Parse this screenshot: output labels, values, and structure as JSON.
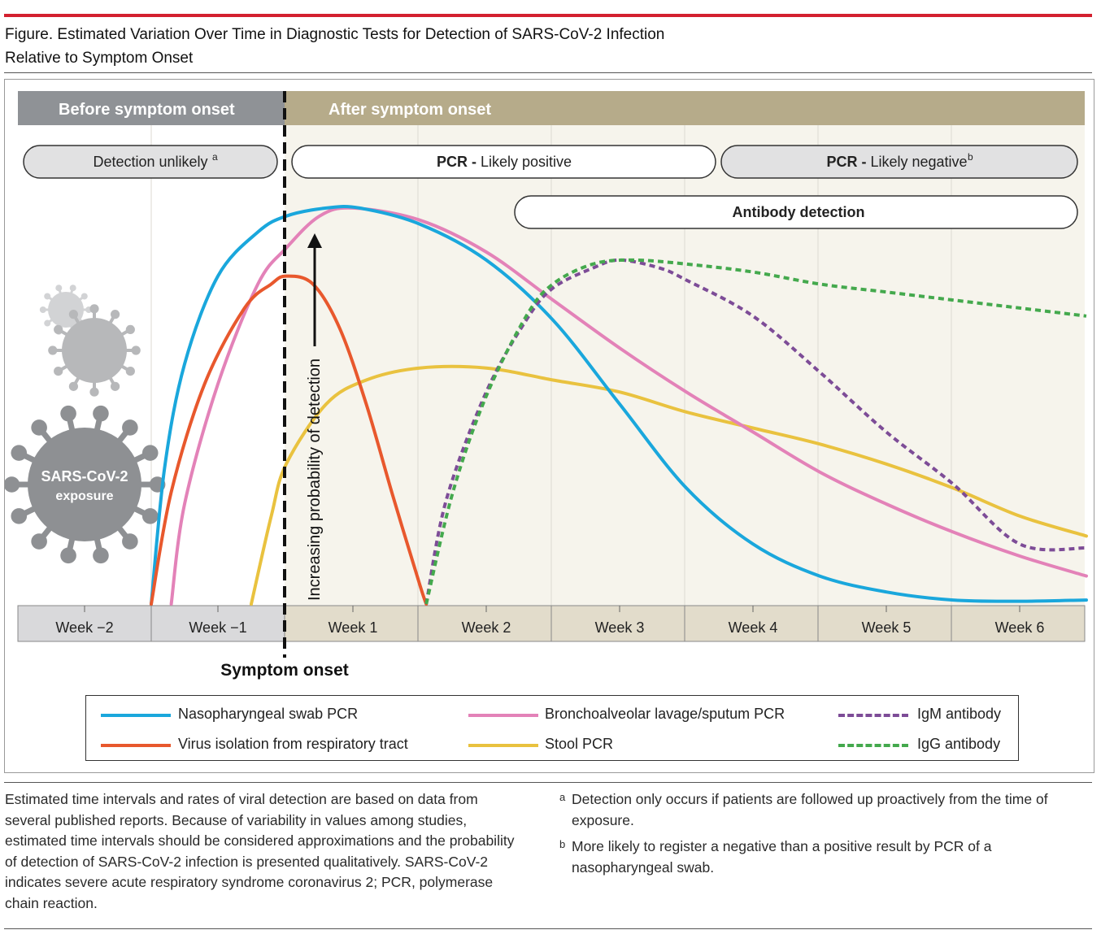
{
  "figure": {
    "title_line1": "Figure. Estimated Variation Over Time in Diagnostic Tests for Detection of SARS-CoV-2 Infection",
    "title_line2": "Relative to Symptom Onset"
  },
  "header": {
    "before": "Before symptom onset",
    "after": "After symptom onset"
  },
  "pills": {
    "detection_unlikely": "Detection unlikely",
    "detection_unlikely_sup": "a",
    "pcr_positive_bold": "PCR - ",
    "pcr_positive_rest": "Likely positive",
    "pcr_negative_bold": "PCR - ",
    "pcr_negative_rest": "Likely negative",
    "pcr_negative_sup": "b",
    "antibody": "Antibody detection"
  },
  "virus_label": {
    "line1": "SARS-CoV-2",
    "line2": "exposure"
  },
  "arrow_label": "Increasing probability of detection",
  "onset_label": "Symptom onset",
  "colors": {
    "before_header": "#8f9296",
    "after_header": "#b6ab8a",
    "before_tick_bg": "#d9d9db",
    "after_tick_bg": "#e2dccb",
    "plot_after_bg": "#f6f4ec",
    "virus": "#b7b8ba",
    "virus_dark": "#8e9093"
  },
  "chart_data": {
    "type": "line",
    "title": "",
    "xlabel": "",
    "ylabel": "Increasing probability of detection",
    "x_categories": [
      "Week −2",
      "Week −1",
      "Week 1",
      "Week 2",
      "Week 3",
      "Week 4",
      "Week 5",
      "Week 6"
    ],
    "x_axis_note": "x in weeks relative to symptom onset (0 = symptom onset)",
    "xlim": [
      -2,
      6
    ],
    "ylim": [
      0,
      1
    ],
    "series": [
      {
        "name": "Nasopharyngeal swab PCR",
        "color": "#1aa7dc",
        "dash": false,
        "points": [
          [
            -1,
            0
          ],
          [
            -0.9,
            0.34
          ],
          [
            -0.75,
            0.6
          ],
          [
            -0.5,
            0.82
          ],
          [
            -0.2,
            0.93
          ],
          [
            0,
            0.97
          ],
          [
            0.3,
            0.99
          ],
          [
            0.55,
            0.99
          ],
          [
            1,
            0.95
          ],
          [
            1.5,
            0.86
          ],
          [
            2,
            0.71
          ],
          [
            2.5,
            0.5
          ],
          [
            3,
            0.29
          ],
          [
            3.5,
            0.15
          ],
          [
            4,
            0.07
          ],
          [
            4.5,
            0.03
          ],
          [
            5,
            0.01
          ],
          [
            5.5,
            0.007
          ],
          [
            6,
            0.01
          ]
        ]
      },
      {
        "name": "Bronchoalveolar lavage/sputum PCR",
        "color": "#e382b8",
        "dash": false,
        "points": [
          [
            -0.85,
            0
          ],
          [
            -0.75,
            0.25
          ],
          [
            -0.5,
            0.55
          ],
          [
            -0.2,
            0.8
          ],
          [
            0,
            0.89
          ],
          [
            0.25,
            0.97
          ],
          [
            0.5,
            0.99
          ],
          [
            1,
            0.96
          ],
          [
            1.5,
            0.88
          ],
          [
            2,
            0.76
          ],
          [
            2.5,
            0.64
          ],
          [
            3,
            0.53
          ],
          [
            3.5,
            0.43
          ],
          [
            4,
            0.33
          ],
          [
            4.5,
            0.25
          ],
          [
            5,
            0.18
          ],
          [
            5.5,
            0.12
          ],
          [
            6,
            0.07
          ]
        ]
      },
      {
        "name": "Virus isolation from respiratory tract",
        "color": "#e8582d",
        "dash": false,
        "points": [
          [
            -1,
            0
          ],
          [
            -0.85,
            0.28
          ],
          [
            -0.6,
            0.55
          ],
          [
            -0.3,
            0.74
          ],
          [
            -0.1,
            0.8
          ],
          [
            0,
            0.82
          ],
          [
            0.2,
            0.8
          ],
          [
            0.4,
            0.69
          ],
          [
            0.6,
            0.5
          ],
          [
            0.8,
            0.27
          ],
          [
            1,
            0.05
          ],
          [
            1.05,
            0
          ]
        ]
      },
      {
        "name": "Stool PCR",
        "color": "#e9c23f",
        "dash": false,
        "points": [
          [
            -0.25,
            0
          ],
          [
            -0.1,
            0.22
          ],
          [
            0,
            0.35
          ],
          [
            0.3,
            0.5
          ],
          [
            0.6,
            0.56
          ],
          [
            1,
            0.59
          ],
          [
            1.5,
            0.59
          ],
          [
            2,
            0.56
          ],
          [
            2.5,
            0.53
          ],
          [
            3,
            0.48
          ],
          [
            3.5,
            0.44
          ],
          [
            4,
            0.4
          ],
          [
            4.5,
            0.35
          ],
          [
            5,
            0.29
          ],
          [
            5.5,
            0.22
          ],
          [
            6,
            0.17
          ]
        ]
      },
      {
        "name": "IgM antibody",
        "color": "#7d4c97",
        "dash": true,
        "points": [
          [
            1.05,
            0
          ],
          [
            1.2,
            0.26
          ],
          [
            1.5,
            0.53
          ],
          [
            1.8,
            0.71
          ],
          [
            2,
            0.79
          ],
          [
            2.3,
            0.84
          ],
          [
            2.5,
            0.86
          ],
          [
            2.8,
            0.84
          ],
          [
            3,
            0.81
          ],
          [
            3.5,
            0.72
          ],
          [
            4,
            0.58
          ],
          [
            4.5,
            0.43
          ],
          [
            5,
            0.3
          ],
          [
            5.5,
            0.15
          ],
          [
            6,
            0.14
          ]
        ]
      },
      {
        "name": "IgG antibody",
        "color": "#44a94d",
        "dash": true,
        "points": [
          [
            1.05,
            0
          ],
          [
            1.25,
            0.28
          ],
          [
            1.5,
            0.52
          ],
          [
            1.8,
            0.72
          ],
          [
            2,
            0.8
          ],
          [
            2.3,
            0.85
          ],
          [
            2.6,
            0.86
          ],
          [
            3,
            0.85
          ],
          [
            3.5,
            0.83
          ],
          [
            4,
            0.8
          ],
          [
            4.5,
            0.78
          ],
          [
            5,
            0.76
          ],
          [
            5.5,
            0.74
          ],
          [
            6,
            0.72
          ]
        ]
      }
    ]
  },
  "legend": [
    {
      "label": "Nasopharyngeal swab PCR",
      "color": "#1aa7dc",
      "dash": false
    },
    {
      "label": "Bronchoalveolar lavage/sputum PCR",
      "color": "#e382b8",
      "dash": false
    },
    {
      "label": "IgM antibody",
      "color": "#7d4c97",
      "dash": true
    },
    {
      "label": "Virus isolation from respiratory tract",
      "color": "#e8582d",
      "dash": false
    },
    {
      "label": "Stool PCR",
      "color": "#e9c23f",
      "dash": false
    },
    {
      "label": "IgG antibody",
      "color": "#44a94d",
      "dash": true
    }
  ],
  "notes": {
    "left": "Estimated time intervals and rates of viral detection are based on data from several published reports. Because of variability in values among studies, estimated time intervals should be considered approximations and the probability of detection of SARS-CoV-2 infection is presented qualitatively. SARS-CoV-2 indicates severe acute respiratory syndrome coronavirus 2; PCR, polymerase chain reaction.",
    "a_mark": "a",
    "a_text": "Detection only occurs if patients are followed up proactively from the time of exposure.",
    "b_mark": "b",
    "b_text": "More likely to register a negative than a positive result by PCR of a nasopharyngeal swab."
  }
}
